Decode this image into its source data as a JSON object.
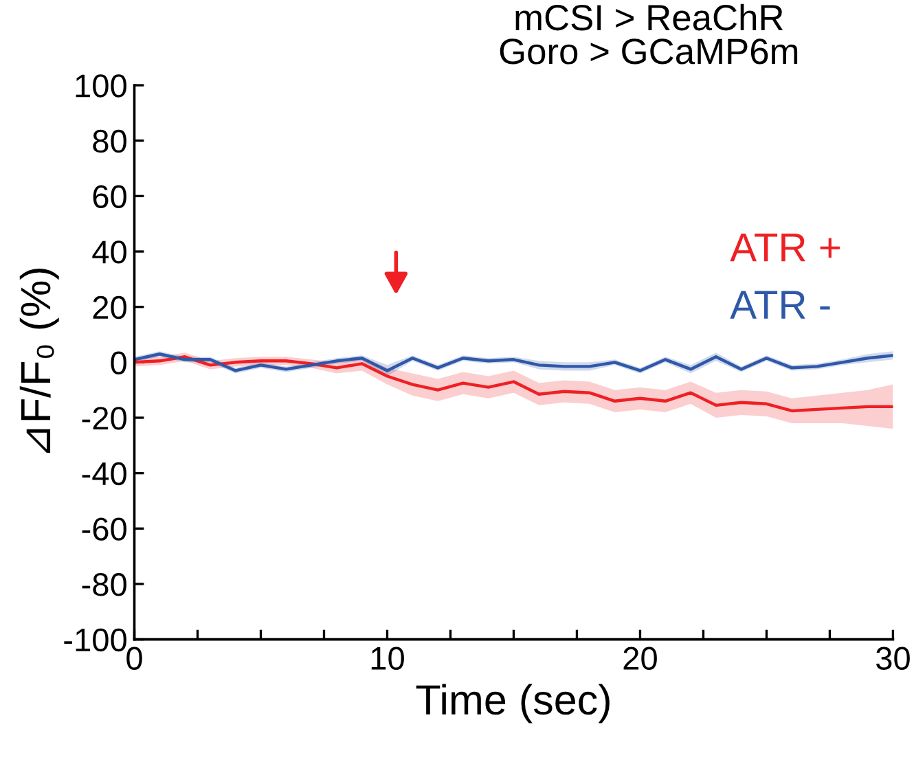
{
  "chart_data": {
    "type": "line",
    "title": "mCSI > ReaChR\nGoro > GCaMP6m",
    "xlabel": "Time (sec)",
    "ylabel": "⊿F/F₀ (%)",
    "x": [
      0,
      1,
      2,
      3,
      4,
      5,
      6,
      7,
      8,
      9,
      10,
      11,
      12,
      13,
      14,
      15,
      16,
      17,
      18,
      19,
      20,
      21,
      22,
      23,
      24,
      25,
      26,
      27,
      28,
      29,
      30
    ],
    "series": [
      {
        "name": "ATR +",
        "color": "#ee2024",
        "values": [
          0,
          0.5,
          2,
          -1,
          0,
          0.5,
          0.5,
          -0.5,
          -2,
          -0.5,
          -5,
          -8,
          -10,
          -7.5,
          -9,
          -7,
          -11.5,
          -10.5,
          -11,
          -14,
          -13,
          -14,
          -11,
          -15.5,
          -14.5,
          -15,
          -17.5,
          -17,
          -16.5,
          -16,
          -16
        ],
        "lower": [
          -1.5,
          -1,
          0.5,
          -2.5,
          -1.5,
          -1,
          -1,
          -2,
          -4,
          -3,
          -8,
          -12,
          -14,
          -11.5,
          -13,
          -11,
          -15.5,
          -14.5,
          -15,
          -18,
          -17,
          -18,
          -15,
          -20,
          -19,
          -19.5,
          -22,
          -22,
          -22,
          -23,
          -24
        ],
        "upper": [
          1.5,
          2,
          3.5,
          0.5,
          1.5,
          2,
          2,
          1,
          0,
          2,
          -2,
          -4,
          -6,
          -3.5,
          -5,
          -3,
          -7.5,
          -6.5,
          -7,
          -10,
          -9,
          -10,
          -7,
          -11,
          -10,
          -10.5,
          -13,
          -12,
          -11,
          -10,
          -8
        ]
      },
      {
        "name": "ATR -",
        "color": "#2f58a8",
        "values": [
          1,
          3,
          1,
          1,
          -3,
          -1,
          -2.5,
          -1,
          0.5,
          1.5,
          -3,
          1.5,
          -2,
          1.5,
          0.5,
          1,
          -1,
          -1.5,
          -1.5,
          0,
          -3,
          1,
          -2.5,
          2,
          -2.5,
          1.5,
          -2,
          -1.5,
          0,
          1.5,
          2.5
        ],
        "lower": [
          0,
          2,
          0,
          0,
          -4,
          -2,
          -3.5,
          -2,
          -0.5,
          0.5,
          -5,
          0.5,
          -3,
          0.5,
          -0.5,
          0,
          -2.5,
          -3,
          -3,
          -1,
          -4,
          0,
          -4,
          0.5,
          -3.5,
          0.5,
          -3,
          -2.5,
          -1,
          0,
          1
        ],
        "upper": [
          2,
          4,
          2,
          2,
          -2,
          0,
          -1.5,
          0,
          1.5,
          2.5,
          -1,
          2.5,
          -1,
          2.5,
          1.5,
          2,
          0.5,
          0,
          0,
          1,
          -2,
          2,
          -1,
          3.5,
          -1.5,
          2.5,
          -1,
          -0.5,
          1,
          3,
          4
        ]
      }
    ],
    "xlim": [
      0,
      30
    ],
    "xticks": [
      0,
      {
        "value": 2.5,
        "label": null
      },
      {
        "value": 5,
        "label": null
      },
      {
        "value": 7.5,
        "label": null
      },
      10,
      {
        "value": 12.5,
        "label": null
      },
      {
        "value": 15,
        "label": null
      },
      {
        "value": 17.5,
        "label": null
      },
      20,
      {
        "value": 22.5,
        "label": null
      },
      {
        "value": 25,
        "label": null
      },
      {
        "value": 27.5,
        "label": null
      },
      30
    ],
    "ylim": [
      -100,
      100
    ],
    "yticks": [
      -100,
      -80,
      -60,
      -40,
      -20,
      0,
      20,
      40,
      60,
      80,
      100
    ],
    "legend": "top right",
    "grid": false,
    "marker": "none",
    "line_style": "solid"
  }
}
